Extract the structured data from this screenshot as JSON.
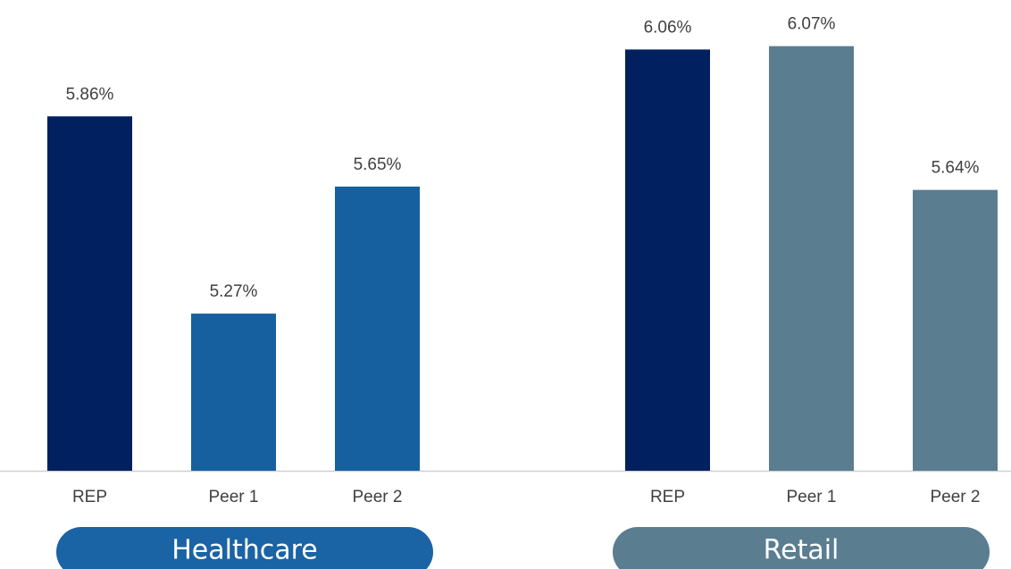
{
  "chart_data": [
    {
      "type": "bar",
      "title": "Healthcare",
      "title_color": "#1a63a5",
      "categories": [
        "REP",
        "Peer 1",
        "Peer 2"
      ],
      "values": [
        5.86,
        5.27,
        5.65
      ],
      "value_labels": [
        "5.86%",
        "5.27%",
        "5.65%"
      ],
      "colors": [
        "#002060",
        "#1660a0",
        "#1660a0"
      ],
      "ylim": [
        4.8,
        6.2
      ]
    },
    {
      "type": "bar",
      "title": "Retail",
      "title_color": "#5a7d90",
      "categories": [
        "REP",
        "Peer 1",
        "Peer 2"
      ],
      "values": [
        6.06,
        6.07,
        5.64
      ],
      "value_labels": [
        "6.06%",
        "6.07%",
        "5.64%"
      ],
      "colors": [
        "#002060",
        "#5a7d90",
        "#5a7d90"
      ],
      "ylim": [
        4.8,
        6.2
      ]
    }
  ]
}
